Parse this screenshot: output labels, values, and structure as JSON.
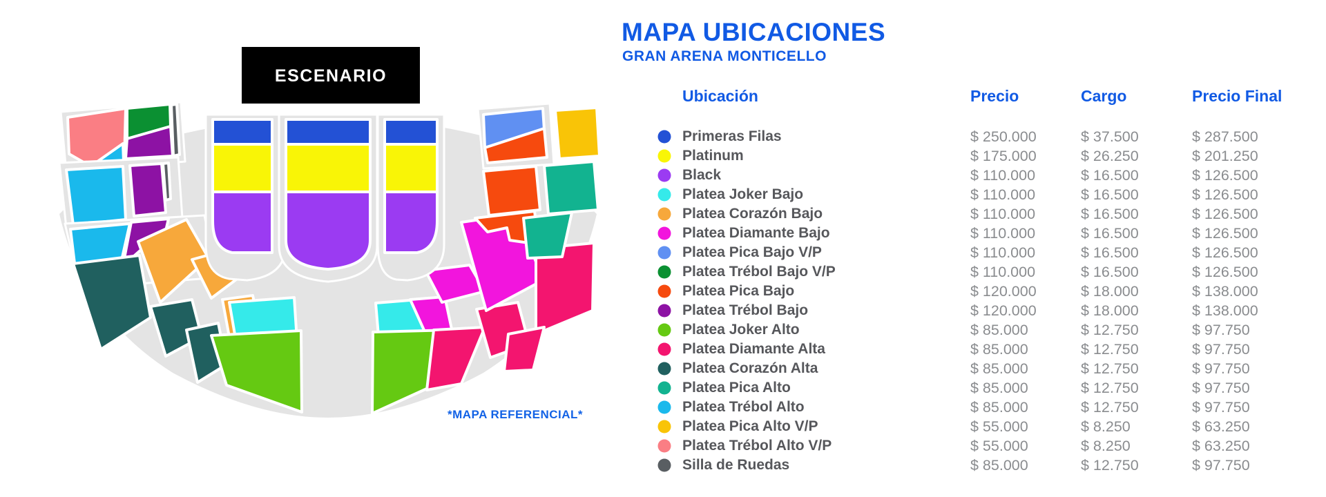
{
  "page": {
    "title": "MAPA UBICACIONES",
    "subtitle": "GRAN ARENA MONTICELLO",
    "stage_label": "ESCENARIO",
    "map_note": "*MAPA REFERENCIAL*"
  },
  "colors": {
    "accent_blue": "#115AE4",
    "note_blue": "#1262E6",
    "label_gray": "#56575B",
    "price_gray": "#8A8C8F",
    "map_base": "#E4E4E4",
    "stage_bg": "#000000",
    "stage_text": "#FFFFFF"
  },
  "table": {
    "headers": {
      "ubicacion": "Ubicación",
      "precio": "Precio",
      "cargo": "Cargo",
      "precio_final": "Precio Final"
    },
    "rows": [
      {
        "label": "Primeras Filas",
        "color": "#2351D5",
        "precio": "$ 250.000",
        "cargo": "$ 37.500",
        "precio_final": "$ 287.500"
      },
      {
        "label": "Platinum",
        "color": "#F9F506",
        "precio": "$ 175.000",
        "cargo": "$ 26.250",
        "precio_final": "$ 201.250"
      },
      {
        "label": "Black",
        "color": "#9B3BF2",
        "precio": "$ 110.000",
        "cargo": "$ 16.500",
        "precio_final": "$ 126.500"
      },
      {
        "label": "Platea Joker Bajo",
        "color": "#35EAEA",
        "precio": "$ 110.000",
        "cargo": "$ 16.500",
        "precio_final": "$ 126.500"
      },
      {
        "label": "Platea Corazón Bajo",
        "color": "#F7A83B",
        "precio": "$ 110.000",
        "cargo": "$ 16.500",
        "precio_final": "$ 126.500"
      },
      {
        "label": "Platea Diamante Bajo",
        "color": "#F215DD",
        "precio": "$ 110.000",
        "cargo": "$ 16.500",
        "precio_final": "$ 126.500"
      },
      {
        "label": "Platea Pica Bajo V/P",
        "color": "#6090F2",
        "precio": "$ 110.000",
        "cargo": "$ 16.500",
        "precio_final": "$ 126.500"
      },
      {
        "label": "Platea Trébol Bajo V/P",
        "color": "#0B9032",
        "precio": "$ 110.000",
        "cargo": "$ 16.500",
        "precio_final": "$ 126.500"
      },
      {
        "label": "Platea Pica Bajo",
        "color": "#F64A0E",
        "precio": "$ 120.000",
        "cargo": "$ 18.000",
        "precio_final": "$ 138.000"
      },
      {
        "label": "Platea Trébol Bajo",
        "color": "#8D12A4",
        "precio": "$ 120.000",
        "cargo": "$ 18.000",
        "precio_final": "$ 138.000"
      },
      {
        "label": "Platea Joker Alto",
        "color": "#65C912",
        "precio": "$ 85.000",
        "cargo": "$ 12.750",
        "precio_final": "$ 97.750"
      },
      {
        "label": "Platea Diamante Alta",
        "color": "#F3156F",
        "precio": "$ 85.000",
        "cargo": "$ 12.750",
        "precio_final": "$ 97.750"
      },
      {
        "label": "Platea Corazón Alta",
        "color": "#20605F",
        "precio": "$ 85.000",
        "cargo": "$ 12.750",
        "precio_final": "$ 97.750"
      },
      {
        "label": "Platea Pica Alto",
        "color": "#12B390",
        "precio": "$ 85.000",
        "cargo": "$ 12.750",
        "precio_final": "$ 97.750"
      },
      {
        "label": "Platea Trébol Alto",
        "color": "#1AB9EC",
        "precio": "$ 85.000",
        "cargo": "$ 12.750",
        "precio_final": "$ 97.750"
      },
      {
        "label": "Platea Pica Alto V/P",
        "color": "#F9C407",
        "precio": "$ 55.000",
        "cargo": "$ 8.250",
        "precio_final": "$ 63.250"
      },
      {
        "label": "Platea Trébol Alto V/P",
        "color": "#FA7E84",
        "precio": "$ 55.000",
        "cargo": "$ 8.250",
        "precio_final": "$ 63.250"
      },
      {
        "label": "Silla de Ruedas",
        "color": "#595E62",
        "precio": "$ 85.000",
        "cargo": "$ 12.750",
        "precio_final": "$ 97.750"
      }
    ]
  }
}
